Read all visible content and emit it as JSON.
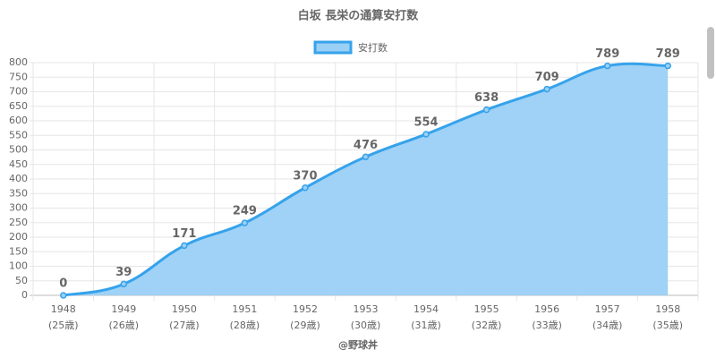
{
  "chart_data": {
    "type": "area",
    "title": "白坂 長栄の通算安打数",
    "categories": [
      "1948",
      "1949",
      "1950",
      "1951",
      "1952",
      "1953",
      "1954",
      "1955",
      "1956",
      "1957",
      "1958"
    ],
    "category_sublabels": [
      "(25歳)",
      "(26歳)",
      "(27歳)",
      "(28歳)",
      "(29歳)",
      "(30歳)",
      "(31歳)",
      "(32歳)",
      "(33歳)",
      "(34歳)",
      "(35歳)"
    ],
    "series": [
      {
        "name": "安打数",
        "color": "#36a2eb",
        "fill": "#9ad0f5",
        "values": [
          0,
          39,
          171,
          249,
          370,
          476,
          554,
          638,
          709,
          789,
          789
        ]
      }
    ],
    "ylim": [
      0,
      800
    ],
    "yticks": [
      0,
      50,
      100,
      150,
      200,
      250,
      300,
      350,
      400,
      450,
      500,
      550,
      600,
      650,
      700,
      750,
      800
    ],
    "grid": true,
    "legend": "top",
    "footer": "@野球丼"
  }
}
